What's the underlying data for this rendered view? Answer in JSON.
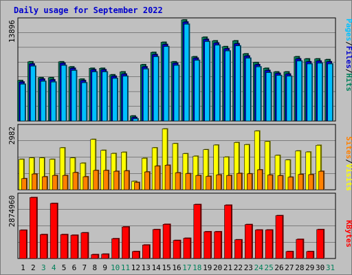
{
  "title": "Daily usage for September 2022",
  "colors": {
    "hits": "#00805a",
    "files": "#0000cc",
    "pages": "#00c0ff",
    "visits": "#ffff00",
    "sites": "#ff8000",
    "kbytes": "#ff0000",
    "weekend_label": "#00805a",
    "weekday_label": "#000000",
    "panel_bg": "#c0c0c0"
  },
  "chart_data": [
    {
      "type": "bar",
      "name": "hits-files-pages",
      "categories": [
        "1",
        "2",
        "3",
        "4",
        "5",
        "6",
        "7",
        "8",
        "9",
        "10",
        "11",
        "12",
        "13",
        "14",
        "15",
        "16",
        "17",
        "18",
        "19",
        "20",
        "21",
        "22",
        "23",
        "24",
        "25",
        "26",
        "27",
        "28",
        "29",
        "30",
        "31"
      ],
      "weekend": [
        "3",
        "4",
        "10",
        "11",
        "17",
        "18",
        "24",
        "25",
        "31"
      ],
      "ymax": 13896,
      "tick_label": "13896",
      "series": [
        {
          "name": "Hits",
          "color": "#00805a",
          "values": [
            5600,
            8200,
            6000,
            6000,
            8200,
            7500,
            5800,
            7300,
            7300,
            6400,
            6800,
            700,
            7800,
            9500,
            10900,
            8200,
            14000,
            8900,
            11600,
            11100,
            10300,
            11100,
            9300,
            8100,
            7300,
            6800,
            6800,
            8900,
            8600,
            8600,
            8500
          ]
        },
        {
          "name": "Files",
          "color": "#0000cc",
          "values": [
            5400,
            7900,
            5800,
            5700,
            8000,
            7300,
            5600,
            7100,
            7100,
            6200,
            6500,
            500,
            7500,
            9200,
            10600,
            8000,
            13700,
            8700,
            11300,
            10800,
            10000,
            10700,
            9000,
            7800,
            7000,
            6600,
            6500,
            8600,
            8200,
            8300,
            8200
          ]
        },
        {
          "name": "Pages",
          "color": "#00c0ff",
          "values": [
            5100,
            7600,
            5500,
            5400,
            7700,
            7000,
            5300,
            6800,
            6800,
            5900,
            6200,
            300,
            7200,
            8900,
            10300,
            7700,
            13400,
            8400,
            11000,
            10500,
            9700,
            10400,
            8700,
            7500,
            6700,
            6300,
            6200,
            8300,
            7900,
            8000,
            7900
          ]
        }
      ]
    },
    {
      "type": "bar",
      "name": "visits-sites",
      "categories": [
        "1",
        "2",
        "3",
        "4",
        "5",
        "6",
        "7",
        "8",
        "9",
        "10",
        "11",
        "12",
        "13",
        "14",
        "15",
        "16",
        "17",
        "18",
        "19",
        "20",
        "21",
        "22",
        "23",
        "24",
        "25",
        "26",
        "27",
        "28",
        "29",
        "30",
        "31"
      ],
      "ymax": 2982,
      "tick_label": "2982",
      "series": [
        {
          "name": "Visits",
          "color": "#ffff00",
          "values": [
            1450,
            1520,
            1520,
            1450,
            2000,
            1520,
            1270,
            2400,
            1880,
            1730,
            1790,
            400,
            1500,
            2000,
            2900,
            2200,
            1720,
            1600,
            1910,
            2130,
            1560,
            2250,
            2150,
            2800,
            2300,
            1640,
            1420,
            1850,
            1800,
            2120,
            0
          ]
        },
        {
          "name": "Sites",
          "color": "#ff8000",
          "values": [
            530,
            750,
            620,
            680,
            680,
            820,
            620,
            920,
            920,
            880,
            900,
            350,
            850,
            1130,
            1170,
            810,
            770,
            680,
            640,
            710,
            680,
            780,
            760,
            950,
            700,
            670,
            600,
            730,
            720,
            880,
            0
          ]
        }
      ]
    },
    {
      "type": "bar",
      "name": "kbytes",
      "categories": [
        "1",
        "2",
        "3",
        "4",
        "5",
        "6",
        "7",
        "8",
        "9",
        "10",
        "11",
        "12",
        "13",
        "14",
        "15",
        "16",
        "17",
        "18",
        "19",
        "20",
        "21",
        "22",
        "23",
        "24",
        "25",
        "26",
        "27",
        "28",
        "29",
        "30",
        "31"
      ],
      "ymax": 2874960,
      "tick_label": "2874960",
      "series": [
        {
          "name": "KBytes",
          "color": "#ff0000",
          "values": [
            1300000,
            2800000,
            1100000,
            2530000,
            1100000,
            1070000,
            1180000,
            180000,
            200000,
            910000,
            1450000,
            320000,
            620000,
            1330000,
            1570000,
            830000,
            930000,
            2480000,
            1230000,
            1230000,
            2450000,
            860000,
            1560000,
            1310000,
            1310000,
            1970000,
            320000,
            880000,
            320000,
            1330000,
            0
          ]
        }
      ]
    }
  ],
  "legend": {
    "top": [
      {
        "label": "Pages",
        "color": "#00c0ff"
      },
      {
        "label": "/",
        "color": "#000000"
      },
      {
        "label": "Files",
        "color": "#0000cc"
      },
      {
        "label": "/",
        "color": "#000000"
      },
      {
        "label": "Hits",
        "color": "#00805a"
      }
    ],
    "middle": [
      {
        "label": "Sites",
        "color": "#ff8000"
      },
      {
        "label": "/",
        "color": "#000000"
      },
      {
        "label": "Visits",
        "color": "#ffff00"
      }
    ],
    "bottom": [
      {
        "label": "KBytes",
        "color": "#ff0000"
      }
    ]
  }
}
